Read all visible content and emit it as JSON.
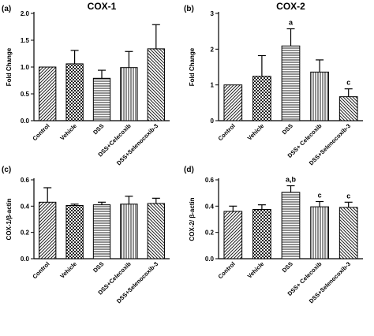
{
  "chart_data": [
    {
      "type": "bar",
      "panel_label": "(a)",
      "title": "COX-1",
      "ylabel": "Fold Change",
      "xlabel": "",
      "categories": [
        "Control",
        "Vehicle",
        "DSS",
        "DSS+Celecoxib",
        "DSS+Selenocoxib-3"
      ],
      "values": [
        1.0,
        1.06,
        0.79,
        0.99,
        1.34
      ],
      "errors": [
        0.0,
        0.25,
        0.15,
        0.3,
        0.45
      ],
      "annotations": [
        "",
        "",
        "",
        "",
        ""
      ],
      "ylim": [
        0.0,
        2.0
      ],
      "yticks": [
        0.0,
        0.5,
        1.0,
        1.5,
        2.0
      ],
      "ytick_labels": [
        "0.0",
        "0.5",
        "1.0",
        "1.5",
        "2.0"
      ],
      "grid": false,
      "legend": "none"
    },
    {
      "type": "bar",
      "panel_label": "(b)",
      "title": "COX-2",
      "ylabel": "Fold Change",
      "xlabel": "",
      "categories": [
        "Control",
        "Vehicle",
        "DSS",
        "DSS+ Celecoxib",
        "DSS+Selenocoxib-3"
      ],
      "values": [
        1.0,
        1.24,
        2.09,
        1.36,
        0.67
      ],
      "errors": [
        0.0,
        0.58,
        0.48,
        0.34,
        0.22
      ],
      "annotations": [
        "",
        "",
        "a",
        "",
        "c"
      ],
      "ylim": [
        0.0,
        3.0
      ],
      "yticks": [
        0,
        1,
        2,
        3
      ],
      "ytick_labels": [
        "0",
        "1",
        "2",
        "3"
      ],
      "grid": false,
      "legend": "none"
    },
    {
      "type": "bar",
      "panel_label": "(c)",
      "title": "",
      "ylabel": "COX-1/β-actin",
      "xlabel": "",
      "categories": [
        "Control",
        "Vehicle",
        "DSS",
        "DSS+Celecoxib",
        "DSS+Selenocoxib-3"
      ],
      "values": [
        0.43,
        0.405,
        0.41,
        0.415,
        0.42
      ],
      "errors": [
        0.11,
        0.01,
        0.02,
        0.06,
        0.04
      ],
      "annotations": [
        "",
        "",
        "",
        "",
        ""
      ],
      "ylim": [
        0.0,
        0.6
      ],
      "yticks": [
        0.0,
        0.2,
        0.4,
        0.6
      ],
      "ytick_labels": [
        "0.0",
        "0.2",
        "0.4",
        "0.6"
      ],
      "grid": false,
      "legend": "none"
    },
    {
      "type": "bar",
      "panel_label": "(d)",
      "title": "",
      "ylabel": "COX-2/ β-actin",
      "xlabel": "",
      "categories": [
        "Control",
        "Vehicle",
        "DSS",
        "DSS+ Celecoxib",
        "DSS+Selenocoxib-3"
      ],
      "values": [
        0.36,
        0.375,
        0.505,
        0.395,
        0.39
      ],
      "errors": [
        0.04,
        0.035,
        0.05,
        0.04,
        0.04
      ],
      "annotations": [
        "",
        "",
        "a,b",
        "c",
        "c"
      ],
      "ylim": [
        0.0,
        0.6
      ],
      "yticks": [
        0.0,
        0.2,
        0.4,
        0.6
      ],
      "ytick_labels": [
        "0.0",
        "0.2",
        "0.4",
        "0.6"
      ],
      "grid": false,
      "legend": "none"
    }
  ],
  "bar_patterns": [
    "diagonal-hatch",
    "checkerboard",
    "horizontal-lines",
    "vertical-lines",
    "diagonal-hatch-reverse"
  ]
}
